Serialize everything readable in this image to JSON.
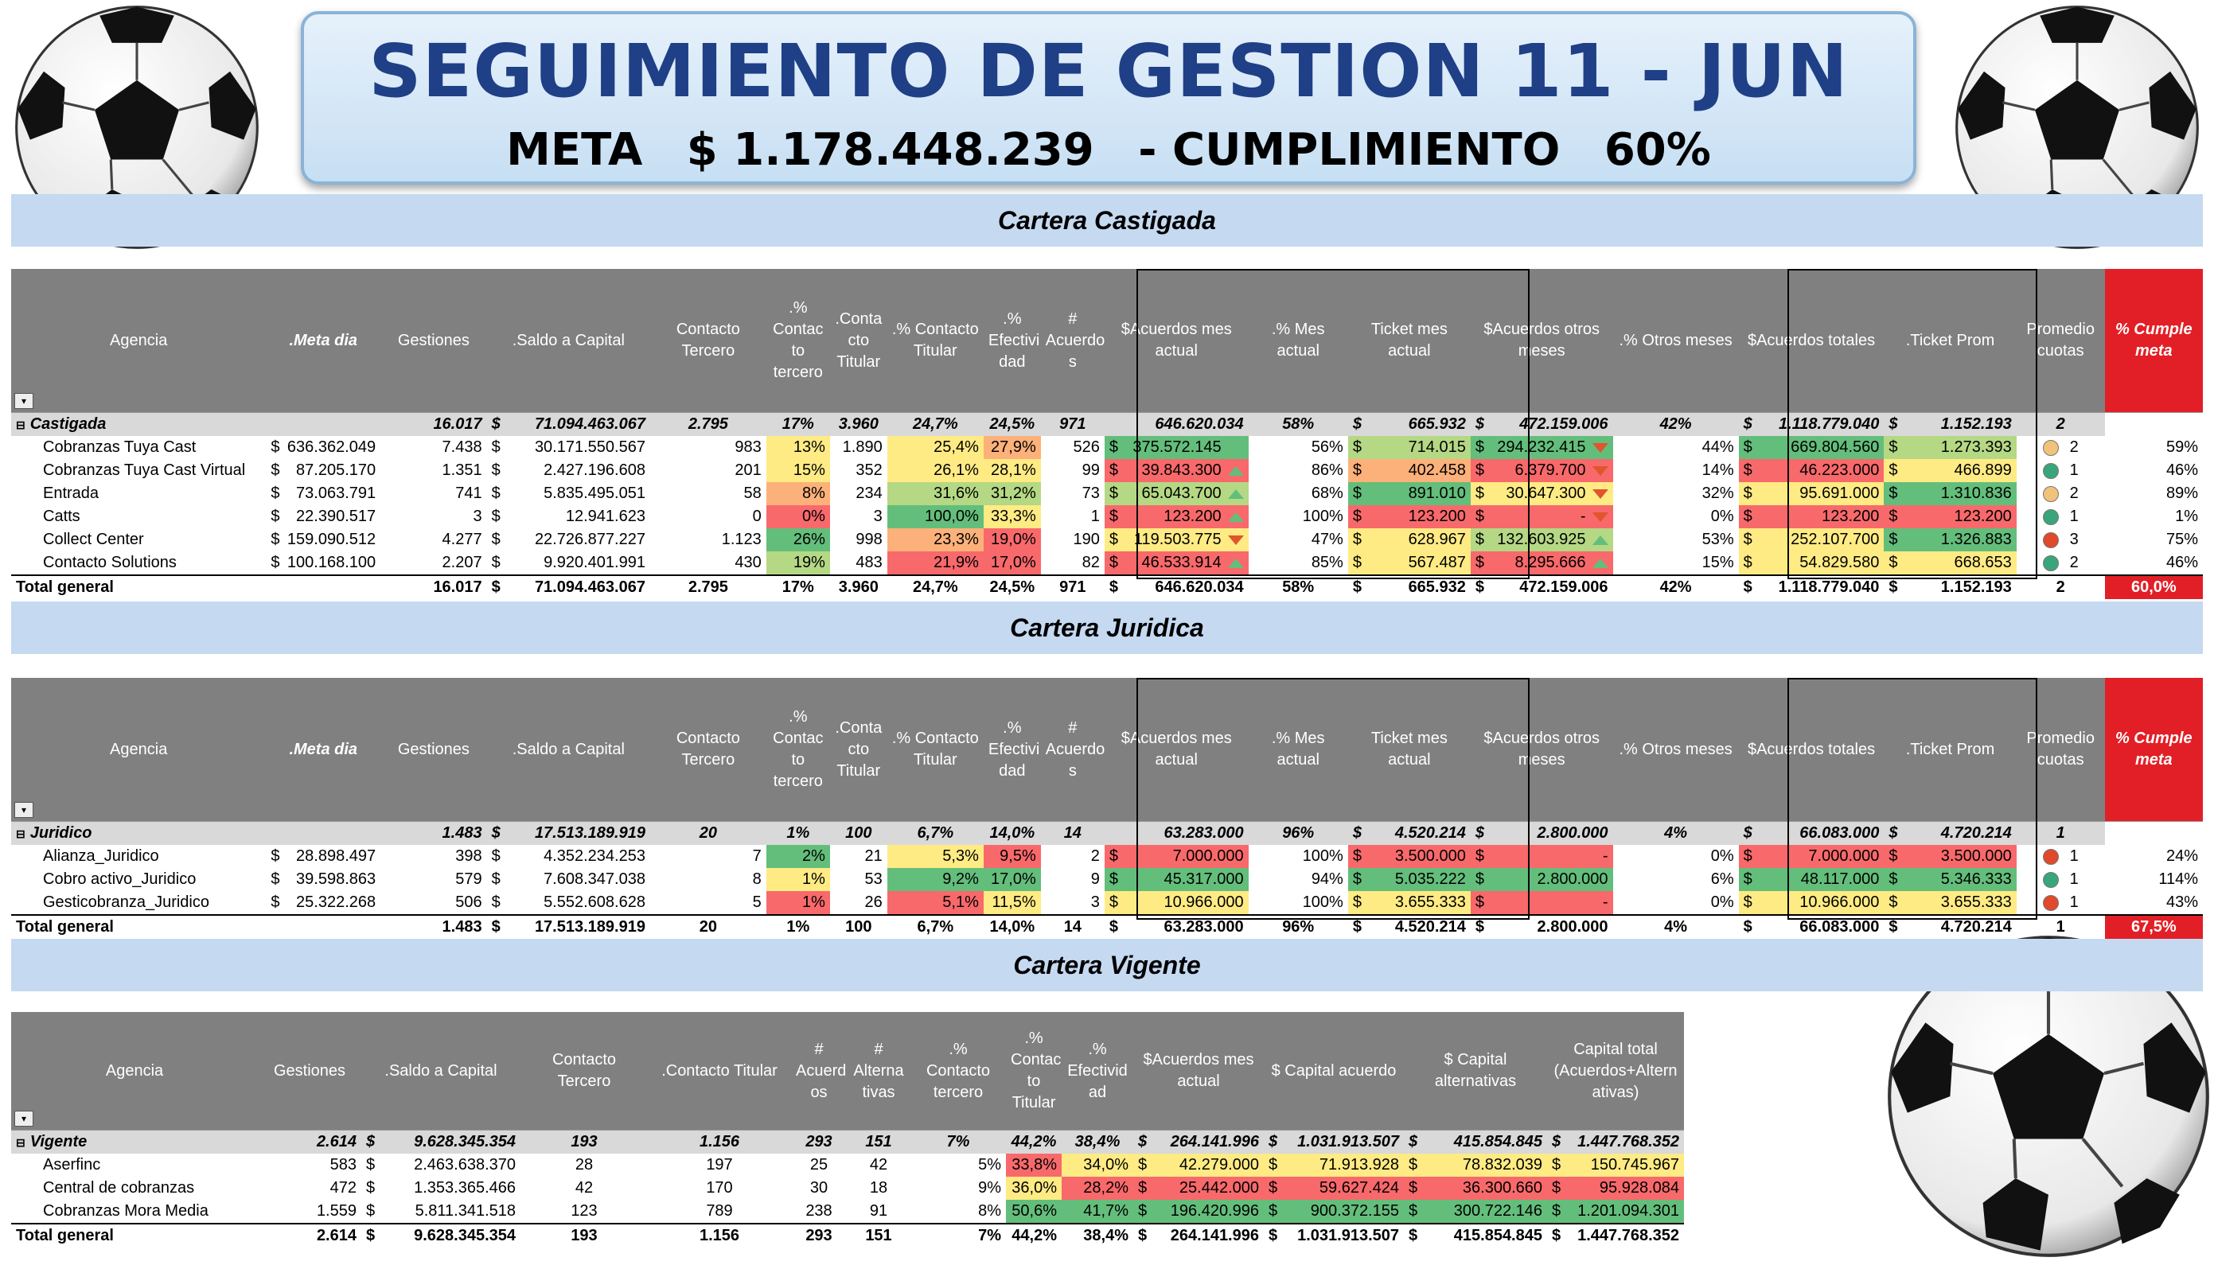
{
  "title": {
    "main": "SEGUIMIENTO DE GESTION  11 - JUN",
    "meta_label": "META",
    "meta_value": "$ 1.178.448.239",
    "cumple_label": "- CUMPLIMIENTO",
    "cumple_value": "60%"
  },
  "sections": {
    "castigada": "Cartera Castigada",
    "juridica": "Cartera Juridica",
    "vigente": "Cartera Vigente"
  },
  "headers_cj": [
    "Agencia",
    ".Meta dia",
    "Gestiones",
    ".Saldo a Capital",
    "Contacto Tercero",
    ".% Contac to tercero",
    ".Conta cto Titular",
    ".% Contacto Titular",
    ".% Efectivi dad",
    "# Acuerdo s",
    "$Acuerdos mes actual",
    ".% Mes actual",
    "Ticket mes actual",
    "$Acuerdos otros meses",
    ".% Otros meses",
    "$Acuerdos totales",
    ".Ticket Prom",
    "Promedio cuotas",
    "% Cumple meta"
  ],
  "headers_v": [
    "Agencia",
    "Gestiones",
    ".Saldo a Capital",
    "Contacto Tercero",
    ".Contacto Titular",
    "# Acuerd os",
    "# Alterna tivas",
    ".% Contacto tercero",
    ".% Contac to Titular",
    ".% Efectivid ad",
    "$Acuerdos mes actual",
    "$ Capital acuerdo",
    "$ Capital alternativas",
    "Capital total (Acuerdos+Altern ativas)"
  ],
  "castigada": {
    "group": {
      "name": "Castigada",
      "meta": "",
      "gestiones": "16.017",
      "saldo": "71.094.463.067",
      "ct": "2.795",
      "pct": "17%",
      "ctit": "3.960",
      "pctit": "24,7%",
      "efect": "24,5%",
      "acuerdos": "971",
      "am": "646.620.034",
      "pm": "58%",
      "tm": "665.932",
      "ao": "472.159.006",
      "po": "42%",
      "at": "1.118.779.040",
      "tp": "1.152.193",
      "cuotas": "2",
      "cumple": ""
    },
    "rows": [
      {
        "name": "Cobranzas Tuya Cast",
        "meta": "636.362.049",
        "gestiones": "7.438",
        "saldo": "30.171.550.567",
        "ct": "983",
        "pct": "13%",
        "ctit": "1.890",
        "pctit": "25,4%",
        "efect": "27,9%",
        "acuerdos": "526",
        "am": "375.572.145",
        "pm": "56%",
        "tm": "714.015",
        "ao": "294.232.415",
        "po": "44%",
        "at": "669.804.560",
        "tp": "1.273.393",
        "cuotas": "2",
        "cumple": "59%"
      },
      {
        "name": "Cobranzas Tuya Cast Virtual",
        "meta": "87.205.170",
        "gestiones": "1.351",
        "saldo": "2.427.196.608",
        "ct": "201",
        "pct": "15%",
        "ctit": "352",
        "pctit": "26,1%",
        "efect": "28,1%",
        "acuerdos": "99",
        "am": "39.843.300",
        "pm": "86%",
        "tm": "402.458",
        "ao": "6.379.700",
        "po": "14%",
        "at": "46.223.000",
        "tp": "466.899",
        "cuotas": "1",
        "cumple": "46%"
      },
      {
        "name": "Entrada",
        "meta": "73.063.791",
        "gestiones": "741",
        "saldo": "5.835.495.051",
        "ct": "58",
        "pct": "8%",
        "ctit": "234",
        "pctit": "31,6%",
        "efect": "31,2%",
        "acuerdos": "73",
        "am": "65.043.700",
        "pm": "68%",
        "tm": "891.010",
        "ao": "30.647.300",
        "po": "32%",
        "at": "95.691.000",
        "tp": "1.310.836",
        "cuotas": "2",
        "cumple": "89%"
      },
      {
        "name": "Catts",
        "meta": "22.390.517",
        "gestiones": "3",
        "saldo": "12.941.623",
        "ct": "0",
        "pct": "0%",
        "ctit": "3",
        "pctit": "100,0%",
        "efect": "33,3%",
        "acuerdos": "1",
        "am": "123.200",
        "pm": "100%",
        "tm": "123.200",
        "ao": "-",
        "po": "0%",
        "at": "123.200",
        "tp": "123.200",
        "cuotas": "1",
        "cumple": "1%"
      },
      {
        "name": "Collect Center",
        "meta": "159.090.512",
        "gestiones": "4.277",
        "saldo": "22.726.877.227",
        "ct": "1.123",
        "pct": "26%",
        "ctit": "998",
        "pctit": "23,3%",
        "efect": "19,0%",
        "acuerdos": "190",
        "am": "119.503.775",
        "pm": "47%",
        "tm": "628.967",
        "ao": "132.603.925",
        "po": "53%",
        "at": "252.107.700",
        "tp": "1.326.883",
        "cuotas": "3",
        "cumple": "75%"
      },
      {
        "name": "Contacto Solutions",
        "meta": "100.168.100",
        "gestiones": "2.207",
        "saldo": "9.920.401.991",
        "ct": "430",
        "pct": "19%",
        "ctit": "483",
        "pctit": "21,9%",
        "efect": "17,0%",
        "acuerdos": "82",
        "am": "46.533.914",
        "pm": "85%",
        "tm": "567.487",
        "ao": "8.295.666",
        "po": "15%",
        "at": "54.829.580",
        "tp": "668.653",
        "cuotas": "2",
        "cumple": "46%"
      }
    ],
    "total": {
      "name": "Total general",
      "meta": "",
      "gestiones": "16.017",
      "saldo": "71.094.463.067",
      "ct": "2.795",
      "pct": "17%",
      "ctit": "3.960",
      "pctit": "24,7%",
      "efect": "24,5%",
      "acuerdos": "971",
      "am": "646.620.034",
      "pm": "58%",
      "tm": "665.932",
      "ao": "472.159.006",
      "po": "42%",
      "at": "1.118.779.040",
      "tp": "1.152.193",
      "cuotas": "2",
      "cumple": "60,0%"
    }
  },
  "juridica": {
    "group": {
      "name": "Juridico",
      "meta": "",
      "gestiones": "1.483",
      "saldo": "17.513.189.919",
      "ct": "20",
      "pct": "1%",
      "ctit": "100",
      "pctit": "6,7%",
      "efect": "14,0%",
      "acuerdos": "14",
      "am": "63.283.000",
      "pm": "96%",
      "tm": "4.520.214",
      "ao": "2.800.000",
      "po": "4%",
      "at": "66.083.000",
      "tp": "4.720.214",
      "cuotas": "1",
      "cumple": ""
    },
    "rows": [
      {
        "name": "Alianza_Juridico",
        "meta": "28.898.497",
        "gestiones": "398",
        "saldo": "4.352.234.253",
        "ct": "7",
        "pct": "2%",
        "ctit": "21",
        "pctit": "5,3%",
        "efect": "9,5%",
        "acuerdos": "2",
        "am": "7.000.000",
        "pm": "100%",
        "tm": "3.500.000",
        "ao": "-",
        "po": "0%",
        "at": "7.000.000",
        "tp": "3.500.000",
        "cuotas": "1",
        "cumple": "24%"
      },
      {
        "name": "Cobro activo_Juridico",
        "meta": "39.598.863",
        "gestiones": "579",
        "saldo": "7.608.347.038",
        "ct": "8",
        "pct": "1%",
        "ctit": "53",
        "pctit": "9,2%",
        "efect": "17,0%",
        "acuerdos": "9",
        "am": "45.317.000",
        "pm": "94%",
        "tm": "5.035.222",
        "ao": "2.800.000",
        "po": "6%",
        "at": "48.117.000",
        "tp": "5.346.333",
        "cuotas": "1",
        "cumple": "114%"
      },
      {
        "name": "Gesticobranza_Juridico",
        "meta": "25.322.268",
        "gestiones": "506",
        "saldo": "5.552.608.628",
        "ct": "5",
        "pct": "1%",
        "ctit": "26",
        "pctit": "5,1%",
        "efect": "11,5%",
        "acuerdos": "3",
        "am": "10.966.000",
        "pm": "100%",
        "tm": "3.655.333",
        "ao": "-",
        "po": "0%",
        "at": "10.966.000",
        "tp": "3.655.333",
        "cuotas": "1",
        "cumple": "43%"
      }
    ],
    "total": {
      "name": "Total general",
      "meta": "",
      "gestiones": "1.483",
      "saldo": "17.513.189.919",
      "ct": "20",
      "pct": "1%",
      "ctit": "100",
      "pctit": "6,7%",
      "efect": "14,0%",
      "acuerdos": "14",
      "am": "63.283.000",
      "pm": "96%",
      "tm": "4.520.214",
      "ao": "2.800.000",
      "po": "4%",
      "at": "66.083.000",
      "tp": "4.720.214",
      "cuotas": "1",
      "cumple": "67,5%"
    }
  },
  "vigente": {
    "group": {
      "name": "Vigente",
      "gestiones": "2.614",
      "saldo": "9.628.345.354",
      "ct": "193",
      "ctit": "1.156",
      "acuerdos": "293",
      "alt": "151",
      "pct": "7%",
      "pctit": "44,2%",
      "efect": "38,4%",
      "am": "264.141.996",
      "cap": "1.031.913.507",
      "capalt": "415.854.845",
      "captot": "1.447.768.352"
    },
    "rows": [
      {
        "name": "Aserfinc",
        "gestiones": "583",
        "saldo": "2.463.638.370",
        "ct": "28",
        "ctit": "197",
        "acuerdos": "25",
        "alt": "42",
        "pct": "5%",
        "pctit": "33,8%",
        "efect": "34,0%",
        "am": "42.279.000",
        "cap": "71.913.928",
        "capalt": "78.832.039",
        "captot": "150.745.967"
      },
      {
        "name": "Central de cobranzas",
        "gestiones": "472",
        "saldo": "1.353.365.466",
        "ct": "42",
        "ctit": "170",
        "acuerdos": "30",
        "alt": "18",
        "pct": "9%",
        "pctit": "36,0%",
        "efect": "28,2%",
        "am": "25.442.000",
        "cap": "59.627.424",
        "capalt": "36.300.660",
        "captot": "95.928.084"
      },
      {
        "name": "Cobranzas Mora Media",
        "gestiones": "1.559",
        "saldo": "5.811.341.518",
        "ct": "123",
        "ctit": "789",
        "acuerdos": "238",
        "alt": "91",
        "pct": "8%",
        "pctit": "50,6%",
        "efect": "41,7%",
        "am": "196.420.996",
        "cap": "900.372.155",
        "capalt": "300.722.146",
        "captot": "1.201.094.301"
      }
    ],
    "total": {
      "name": "Total general",
      "gestiones": "2.614",
      "saldo": "9.628.345.354",
      "ct": "193",
      "ctit": "1.156",
      "acuerdos": "293",
      "alt": "151",
      "pct": "7%",
      "pctit": "44,2%",
      "efect": "38,4%",
      "am": "264.141.996",
      "cap": "1.031.913.507",
      "capalt": "415.854.845",
      "captot": "1.447.768.352"
    }
  },
  "colors": {
    "header_gray": "#808080",
    "cumple_red": "#e21f26",
    "section_blue": "#c5d9f1",
    "title_blue": "#1f3f86"
  },
  "icons": {
    "ball": "soccer-ball-icon",
    "arrow_up": "arrow-up-icon",
    "arrow_down": "arrow-down-icon",
    "status_dot": "status-dot-icon",
    "filter": "filter-icon",
    "collapse": "collapse-icon"
  }
}
